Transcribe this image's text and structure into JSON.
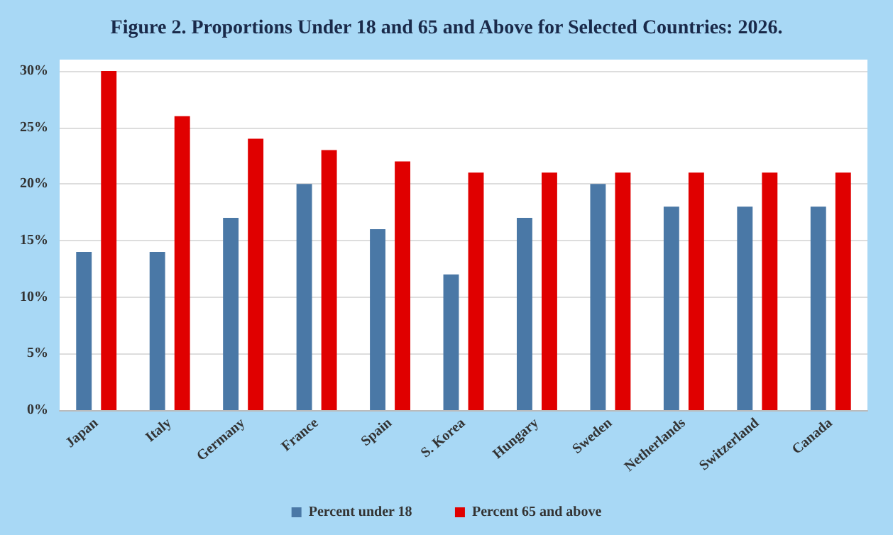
{
  "chart_data": {
    "type": "bar",
    "title": "Figure 2. Proportions Under 18 and 65 and Above for Selected Countries: 2026.",
    "categories": [
      "Japan",
      "Italy",
      "Germany",
      "France",
      "Spain",
      "S. Korea",
      "Hungary",
      "Sweden",
      "Netherlands",
      "Switzerland",
      "Canada"
    ],
    "series": [
      {
        "name": "Percent under 18",
        "color": "#4a78a6",
        "values": [
          14,
          14,
          17,
          20,
          16,
          12,
          17,
          20,
          18,
          18,
          18
        ]
      },
      {
        "name": "Percent 65 and above",
        "color": "#e00000",
        "values": [
          30,
          26,
          24,
          23,
          22,
          21,
          21,
          21,
          21,
          21,
          21
        ]
      }
    ],
    "ylim": [
      0,
      31
    ],
    "yticks": [
      {
        "value": 0,
        "label": "0%"
      },
      {
        "value": 5,
        "label": "5%"
      },
      {
        "value": 10,
        "label": "10%"
      },
      {
        "value": 15,
        "label": "15%"
      },
      {
        "value": 20,
        "label": "20%"
      },
      {
        "value": 25,
        "label": "25%"
      },
      {
        "value": 30,
        "label": "30%"
      }
    ],
    "grid": "y",
    "legend": "bottom"
  }
}
